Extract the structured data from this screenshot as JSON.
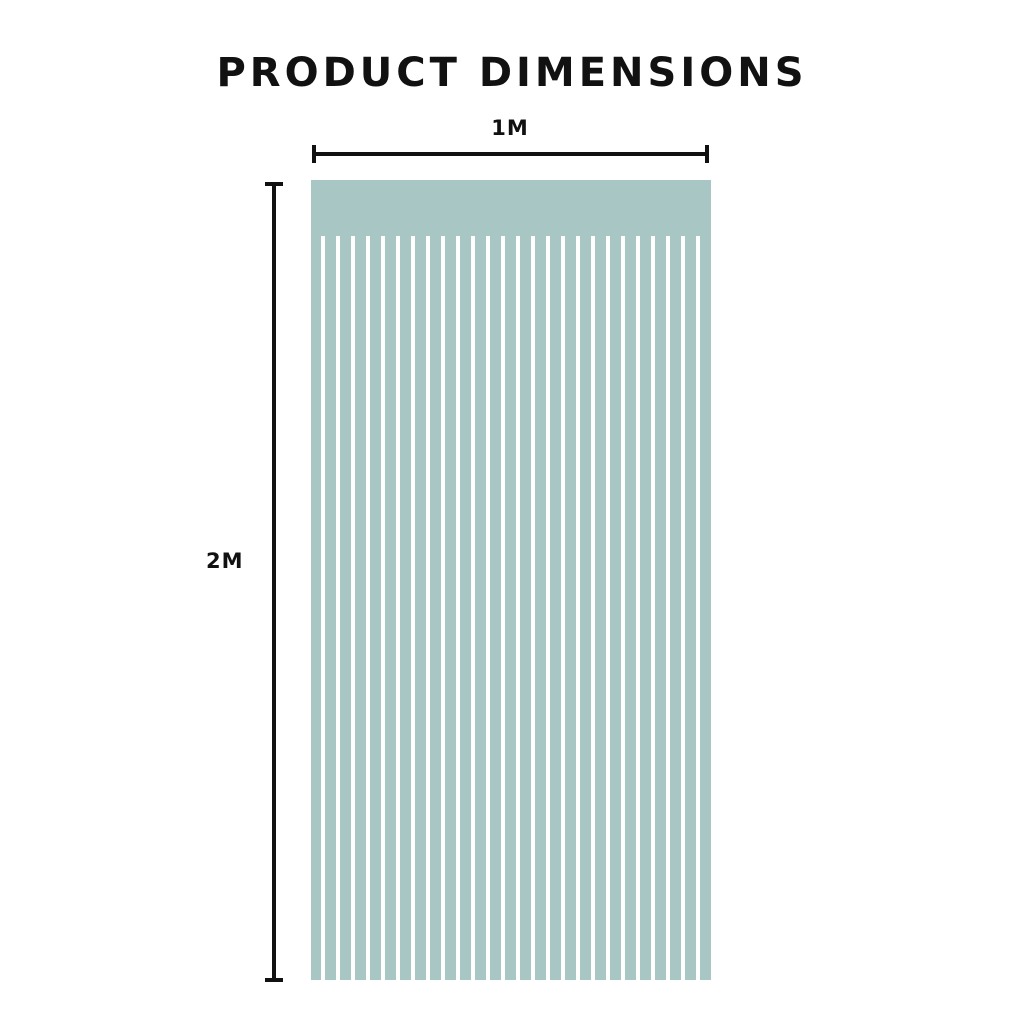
{
  "title": "PRODUCT DIMENSIONS",
  "width_label": "1M",
  "height_label": "2M",
  "fringe_color": "#a8c6c4",
  "line_color": "#111111"
}
